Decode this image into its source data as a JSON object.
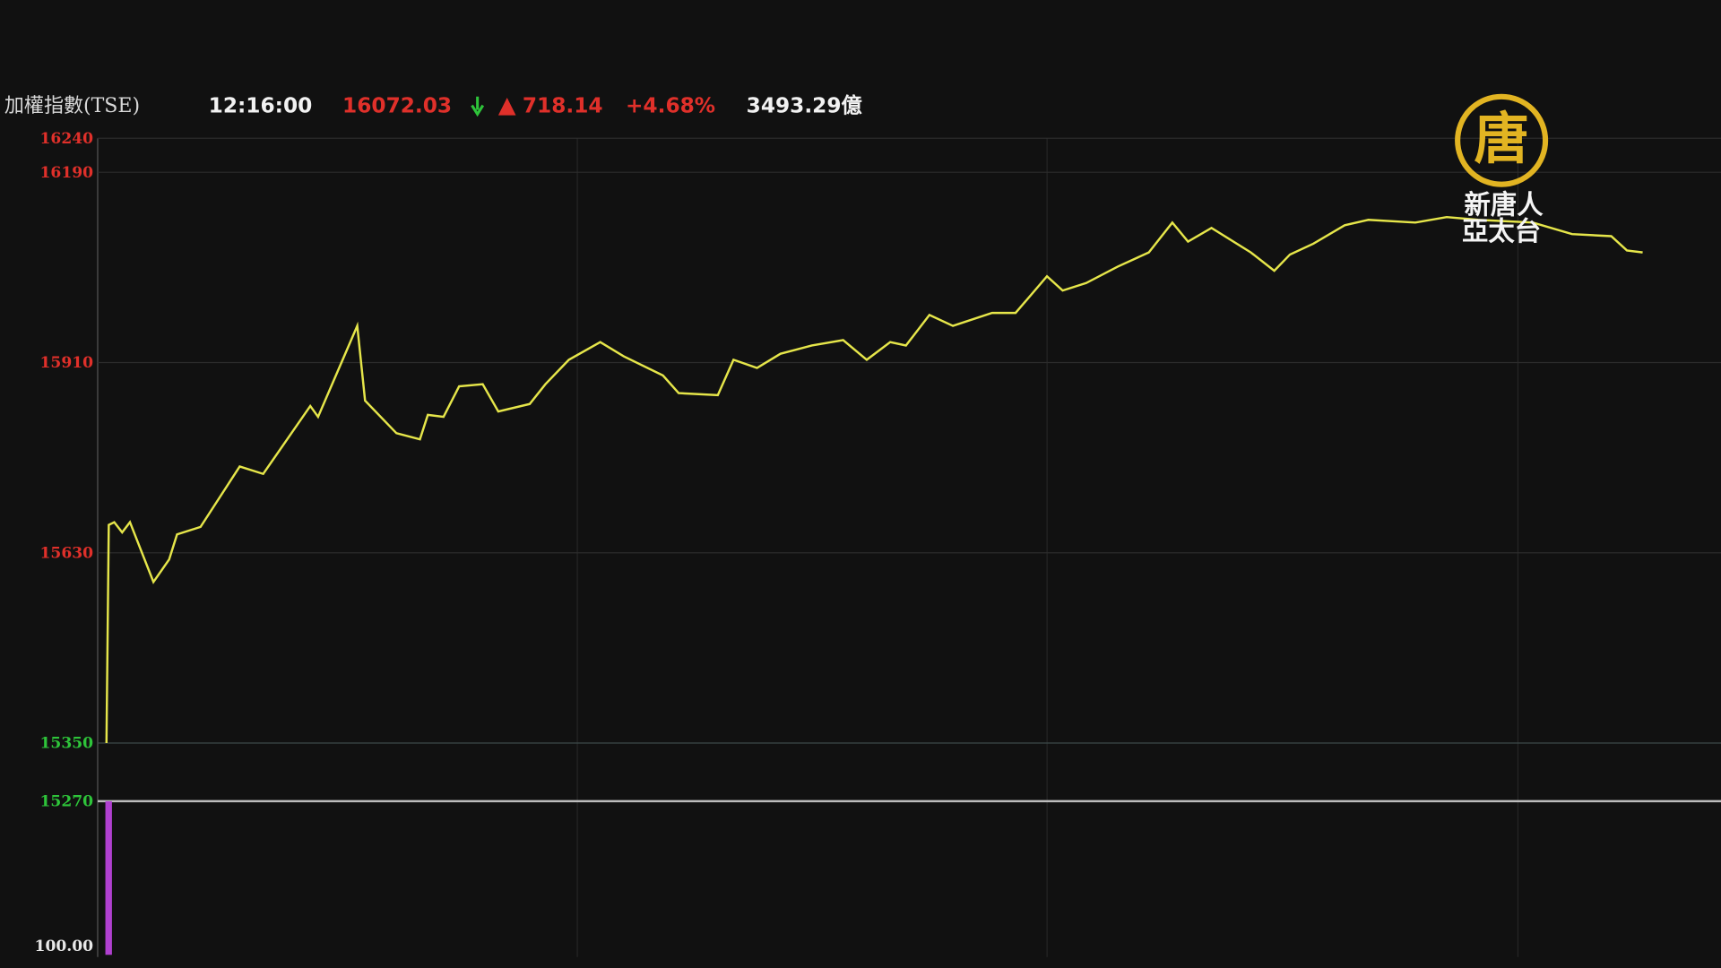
{
  "header": {
    "name": "加權指數(TSE)",
    "time": "12:16:00",
    "price": "16072.03",
    "change": "718.14",
    "change_pct": "+4.68%",
    "turnover": "3493.29億"
  },
  "logo": {
    "mark": "唐",
    "line1": "新唐人",
    "line2": "亞太台"
  },
  "chart_data": [
    {
      "type": "line",
      "color": "#e6e64a",
      "x": [
        0,
        0.3,
        1,
        2,
        3,
        6,
        8,
        9,
        12,
        17,
        20,
        26,
        27,
        32,
        33,
        37,
        40,
        41,
        43,
        45,
        48,
        50,
        54,
        56,
        59,
        63,
        66,
        71,
        73,
        78,
        80,
        83,
        86,
        90,
        94,
        97,
        100,
        102,
        105,
        108,
        113,
        116,
        120,
        122,
        125,
        129,
        133,
        136,
        138,
        141,
        146,
        149,
        151,
        154,
        158,
        161,
        167,
        171,
        175,
        182,
        187,
        192,
        194,
        196
      ],
      "values": [
        15350,
        15671,
        15675,
        15660,
        15675,
        15587,
        15620,
        15657,
        15668,
        15757,
        15746,
        15846,
        15830,
        15964,
        15854,
        15806,
        15797,
        15833,
        15830,
        15875,
        15878,
        15838,
        15849,
        15878,
        15914,
        15940,
        15919,
        15891,
        15865,
        15862,
        15914,
        15902,
        15923,
        15935,
        15943,
        15914,
        15940,
        15935,
        15980,
        15964,
        15983,
        15983,
        16037,
        16016,
        16027,
        16051,
        16072,
        16116,
        16088,
        16108,
        16072,
        16045,
        16069,
        16085,
        16112,
        16120,
        16116,
        16124,
        16120,
        16116,
        16099,
        16096,
        16075,
        16072
      ],
      "xlim": [
        0,
        206
      ],
      "ylim": [
        15350,
        16240
      ],
      "yticks": [
        16240,
        16190,
        15910,
        15630,
        15350
      ],
      "tick_colors": [
        "#e0302a",
        "#e0302a",
        "#e0302a",
        "#e0302a",
        "#2ec43a"
      ],
      "grid": true,
      "grid_color": "#2c2c2c"
    },
    {
      "type": "bar",
      "color": "#b040d0",
      "x": [
        0
      ],
      "values": [
        15270
      ],
      "xlim": [
        0,
        206
      ],
      "ylim": [
        100,
        15270
      ],
      "yticks": [
        15270,
        {
          "value": 100,
          "label": "100.00"
        }
      ],
      "tick_colors": [
        "#2ec43a",
        "#e8e8e8"
      ],
      "grid": true,
      "grid_color": "#bcbcbc"
    }
  ]
}
